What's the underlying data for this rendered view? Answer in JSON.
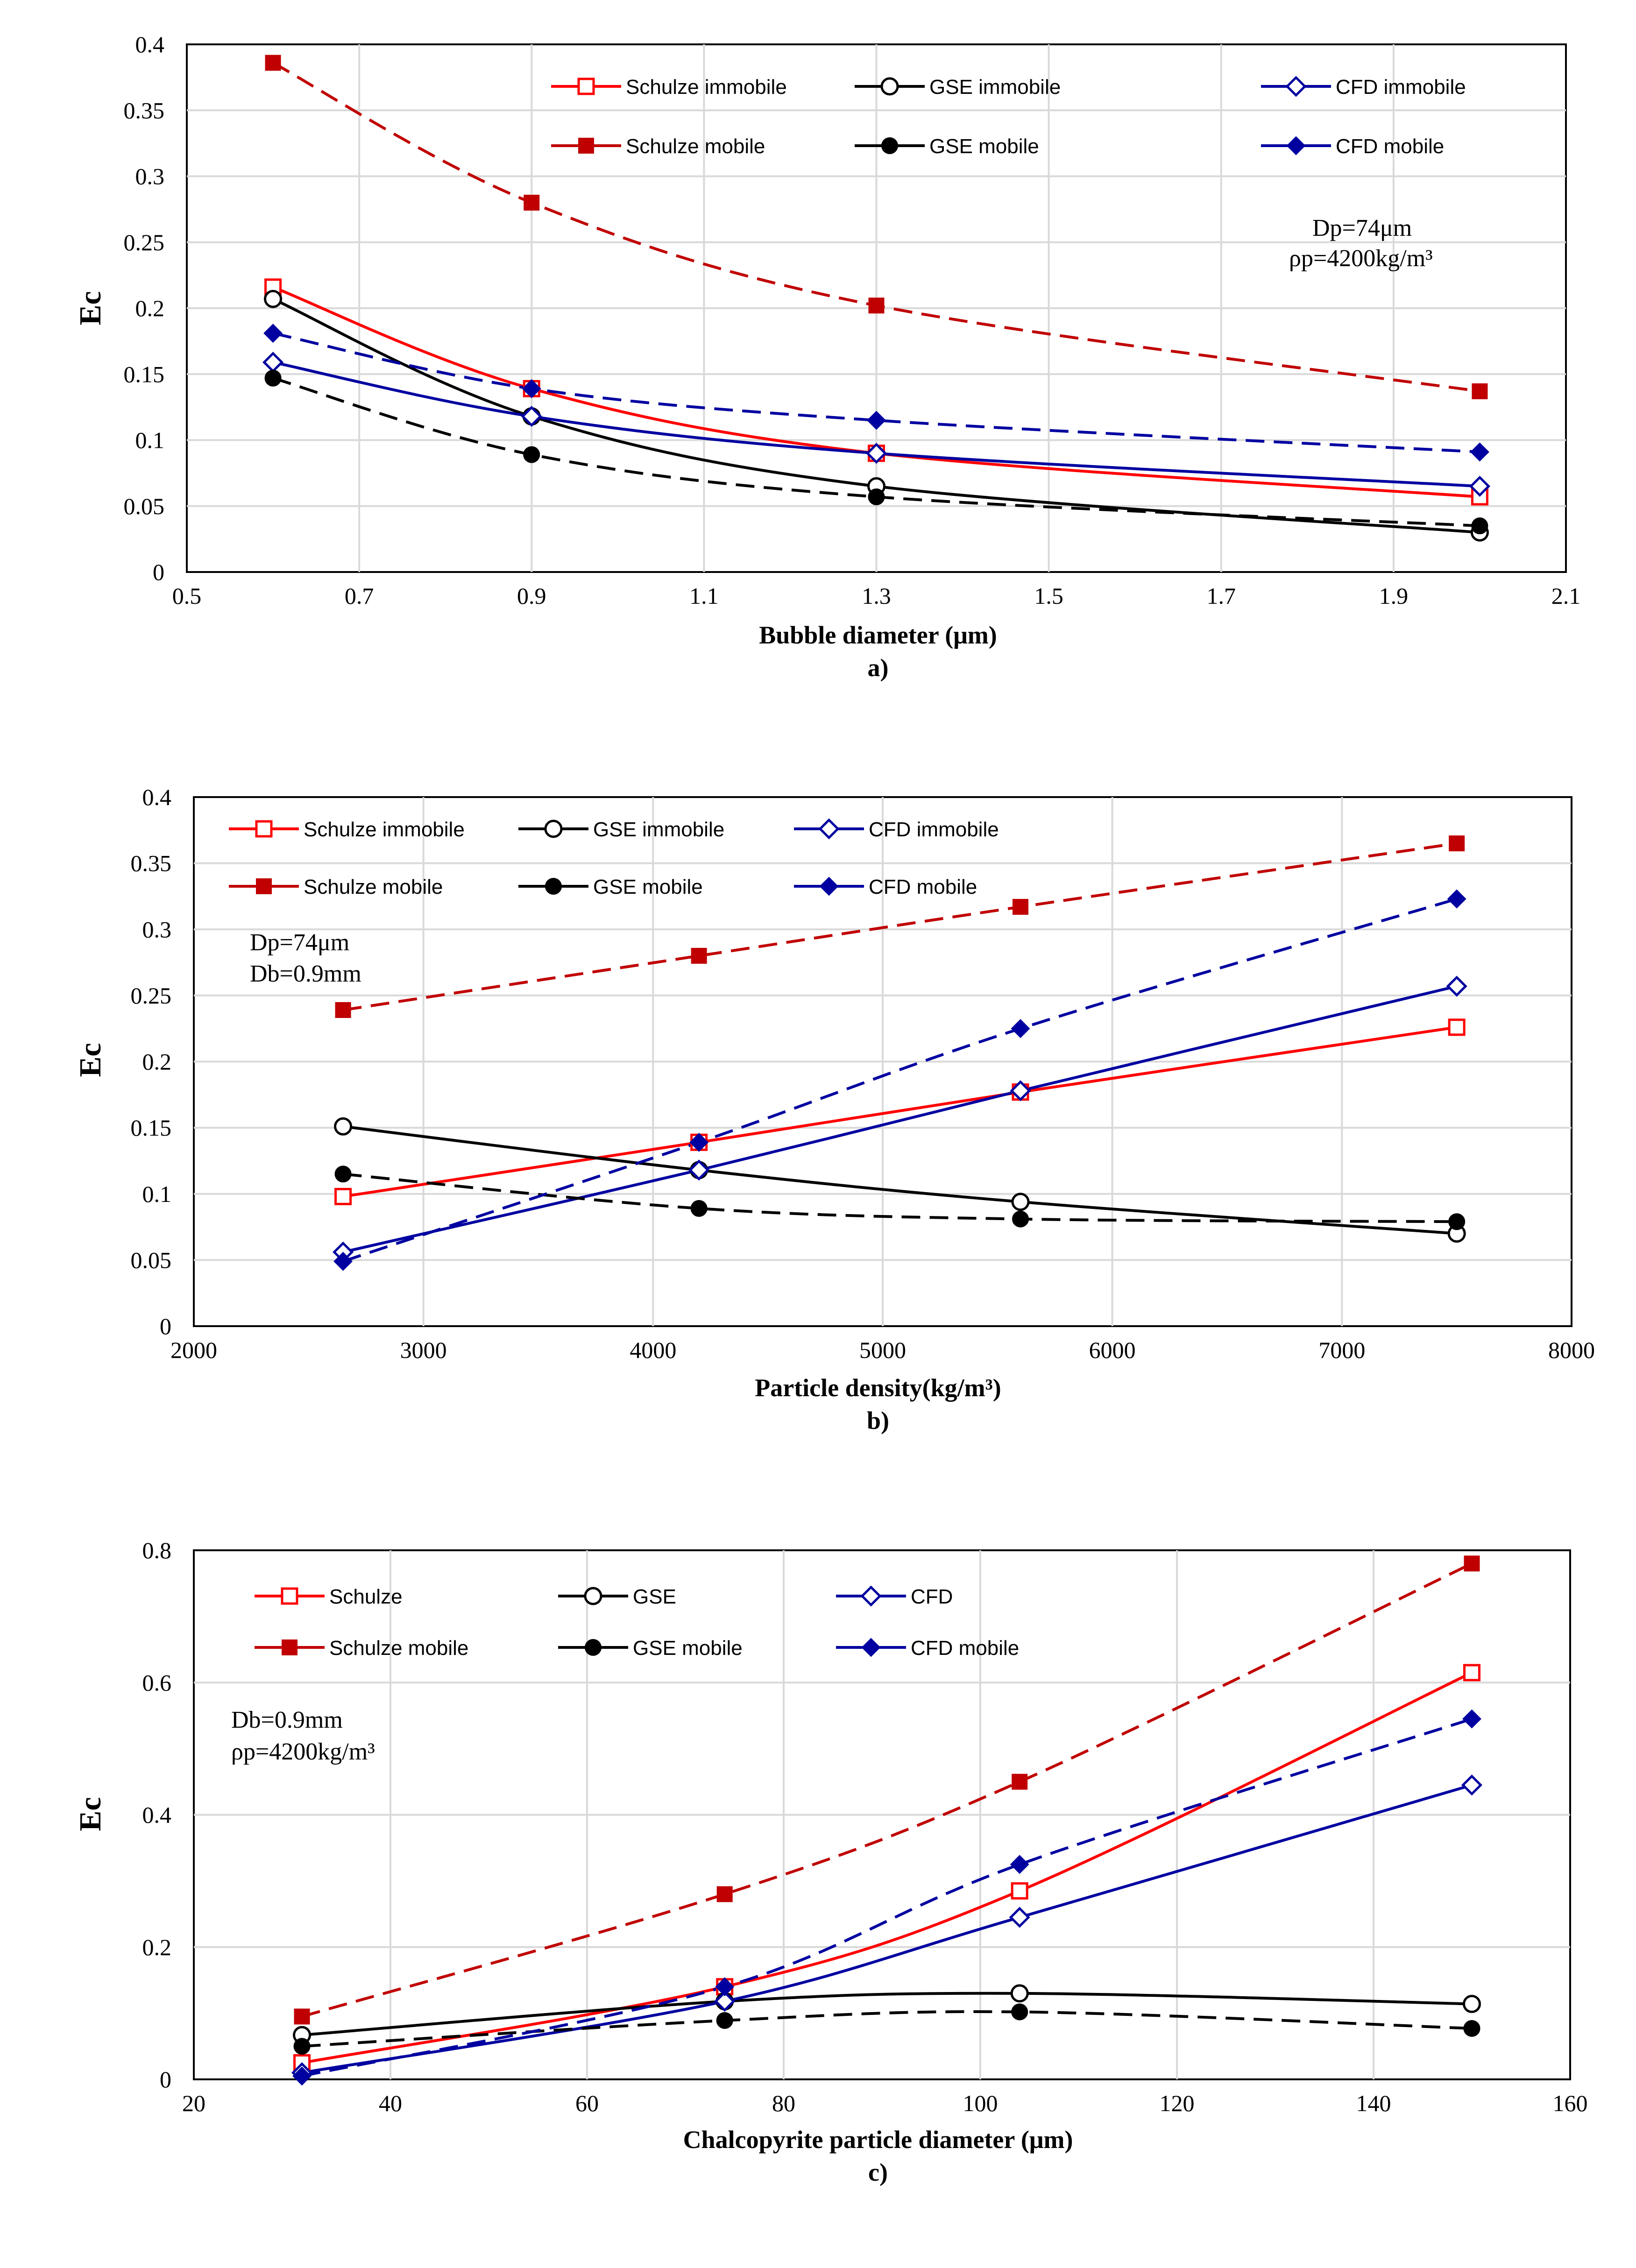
{
  "chart_data": [
    {
      "type": "line",
      "panel_label": "a)",
      "xlabel": "Bubble  diameter (μm)",
      "ylabel": "Ec",
      "xlim": [
        0.5,
        2.1
      ],
      "ylim": [
        0,
        0.4
      ],
      "xticks": [
        "0.5",
        "0.7",
        "0.9",
        "1.1",
        "1.3",
        "1.5",
        "1.7",
        "1.9",
        "2.1"
      ],
      "yticks": [
        "0",
        "0.05",
        "0.1",
        "0.15",
        "0.2",
        "0.25",
        "0.3",
        "0.35",
        "0.4"
      ],
      "grid": true,
      "legend_placement": "top",
      "annotation": [
        "Dp=74μm",
        "ρp=4200kg/m³"
      ],
      "series": [
        {
          "name": "Schulze immobile",
          "color": "#ff0000",
          "marker": "open-square",
          "dashed": false,
          "x": [
            0.6,
            0.9,
            1.3,
            2.0
          ],
          "values": [
            0.216,
            0.139,
            0.09,
            0.057
          ]
        },
        {
          "name": "GSE immobile",
          "color": "#000000",
          "marker": "open-circle",
          "dashed": false,
          "x": [
            0.6,
            0.9,
            1.3,
            2.0
          ],
          "values": [
            0.207,
            0.118,
            0.065,
            0.03
          ]
        },
        {
          "name": "CFD immobile",
          "color": "#0000a0",
          "marker": "open-diamond",
          "dashed": false,
          "x": [
            0.6,
            0.9,
            1.3,
            2.0
          ],
          "values": [
            0.159,
            0.118,
            0.09,
            0.065
          ]
        },
        {
          "name": "Schulze mobile",
          "color": "#c00000",
          "marker": "filled-square",
          "dashed": true,
          "x": [
            0.6,
            0.9,
            1.3,
            2.0
          ],
          "values": [
            0.386,
            0.28,
            0.202,
            0.137
          ]
        },
        {
          "name": "GSE mobile",
          "color": "#000000",
          "marker": "filled-circle",
          "dashed": true,
          "x": [
            0.6,
            0.9,
            1.3,
            2.0
          ],
          "values": [
            0.147,
            0.089,
            0.057,
            0.035
          ]
        },
        {
          "name": "CFD mobile",
          "color": "#0000a0",
          "marker": "filled-diamond",
          "dashed": true,
          "x": [
            0.6,
            0.9,
            1.3,
            2.0
          ],
          "values": [
            0.181,
            0.139,
            0.115,
            0.091
          ]
        }
      ]
    },
    {
      "type": "line",
      "panel_label": "b)",
      "xlabel": "Particle density(kg/m³)",
      "ylabel": "Ec",
      "xlim": [
        2000,
        8000
      ],
      "ylim": [
        0,
        0.4
      ],
      "xticks": [
        "2000",
        "3000",
        "4000",
        "5000",
        "6000",
        "7000",
        "8000"
      ],
      "yticks": [
        "0",
        "0.05",
        "0.1",
        "0.15",
        "0.2",
        "0.25",
        "0.3",
        "0.35",
        "0.4"
      ],
      "grid": true,
      "legend_placement": "top",
      "annotation": [
        "Dp=74μm",
        "Db=0.9mm"
      ],
      "series": [
        {
          "name": "Schulze immobile",
          "color": "#ff0000",
          "marker": "open-square",
          "dashed": false,
          "x": [
            2650,
            4200,
            5600,
            7500
          ],
          "values": [
            0.098,
            0.139,
            0.177,
            0.226
          ]
        },
        {
          "name": "GSE immobile",
          "color": "#000000",
          "marker": "open-circle",
          "dashed": false,
          "x": [
            2650,
            4200,
            5600,
            7500
          ],
          "values": [
            0.151,
            0.118,
            0.094,
            0.07
          ]
        },
        {
          "name": "CFD immobile",
          "color": "#0000a0",
          "marker": "open-diamond",
          "dashed": false,
          "x": [
            2650,
            4200,
            5600,
            7500
          ],
          "values": [
            0.056,
            0.118,
            0.178,
            0.257
          ]
        },
        {
          "name": "Schulze mobile",
          "color": "#c00000",
          "marker": "filled-square",
          "dashed": true,
          "x": [
            2650,
            4200,
            5600,
            7500
          ],
          "values": [
            0.239,
            0.28,
            0.317,
            0.365
          ]
        },
        {
          "name": "GSE mobile",
          "color": "#000000",
          "marker": "filled-circle",
          "dashed": true,
          "x": [
            2650,
            4200,
            5600,
            7500
          ],
          "values": [
            0.115,
            0.089,
            0.081,
            0.079
          ]
        },
        {
          "name": "CFD mobile",
          "color": "#0000a0",
          "marker": "filled-diamond",
          "dashed": true,
          "x": [
            2650,
            4200,
            5600,
            7500
          ],
          "values": [
            0.049,
            0.139,
            0.225,
            0.323
          ]
        }
      ]
    },
    {
      "type": "line",
      "panel_label": "c)",
      "xlabel": "Chalcopyrite particle diameter (μm)",
      "ylabel": "Ec",
      "xlim": [
        20,
        160
      ],
      "ylim": [
        0,
        0.8
      ],
      "xticks": [
        "20",
        "40",
        "60",
        "80",
        "100",
        "120",
        "140",
        "160"
      ],
      "yticks": [
        "0",
        "0.2",
        "0.4",
        "0.6",
        "0.8"
      ],
      "grid": true,
      "legend_placement": "top",
      "annotation": [
        "Db=0.9mm",
        "ρp=4200kg/m³"
      ],
      "series": [
        {
          "name": "Schulze",
          "color": "#ff0000",
          "marker": "open-square",
          "dashed": false,
          "x": [
            31,
            74,
            104,
            150
          ],
          "values": [
            0.025,
            0.14,
            0.285,
            0.615
          ]
        },
        {
          "name": "GSE",
          "color": "#000000",
          "marker": "open-circle",
          "dashed": false,
          "x": [
            31,
            74,
            104,
            150
          ],
          "values": [
            0.067,
            0.118,
            0.13,
            0.114
          ]
        },
        {
          "name": "CFD",
          "color": "#0000a0",
          "marker": "open-diamond",
          "dashed": false,
          "x": [
            31,
            74,
            104,
            150
          ],
          "values": [
            0.01,
            0.118,
            0.245,
            0.445
          ]
        },
        {
          "name": "Schulze mobile",
          "color": "#c00000",
          "marker": "filled-square",
          "dashed": true,
          "x": [
            31,
            74,
            104,
            150
          ],
          "values": [
            0.095,
            0.28,
            0.45,
            0.78
          ]
        },
        {
          "name": "GSE mobile",
          "color": "#000000",
          "marker": "filled-circle",
          "dashed": true,
          "x": [
            31,
            74,
            104,
            150
          ],
          "values": [
            0.05,
            0.089,
            0.102,
            0.077
          ]
        },
        {
          "name": "CFD mobile",
          "color": "#0000a0",
          "marker": "filled-diamond",
          "dashed": true,
          "x": [
            31,
            74,
            104,
            150
          ],
          "values": [
            0.005,
            0.14,
            0.325,
            0.545
          ]
        }
      ]
    }
  ]
}
